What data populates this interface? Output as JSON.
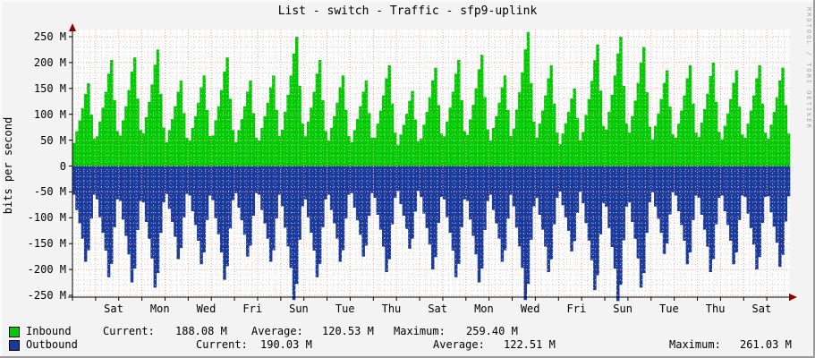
{
  "title": "List - switch - Traffic - sfp9-uplink",
  "watermark": "RRDTOOL / TOBI OETIKER",
  "y_axis": {
    "label": "bits per second",
    "tick_values_M": [
      250,
      200,
      150,
      100,
      50,
      0,
      -50,
      -100,
      -150,
      -200,
      -250
    ],
    "tick_labels": [
      "250 M",
      "200 M",
      "150 M",
      "100 M",
      "50 M",
      "0",
      "-50 M",
      "-100 M",
      "-150 M",
      "-200 M",
      "-250 M"
    ]
  },
  "x_axis": {
    "labels": [
      "Sat",
      "Mon",
      "Wed",
      "Fri",
      "Sun",
      "Tue",
      "Thu",
      "Sat",
      "Mon",
      "Wed",
      "Fri",
      "Sun",
      "Tue",
      "Thu",
      "Sat"
    ]
  },
  "legend": {
    "inbound": {
      "label": "Inbound",
      "current_label": "Current:",
      "current": "188.08 M",
      "average_label": "Average:",
      "average": "120.53 M",
      "maximum_label": "Maximum:",
      "maximum": "259.40 M"
    },
    "outbound": {
      "label": "Outbound",
      "current_label": "Current:",
      "current": "190.03 M",
      "average_label": "Average:",
      "average": "122.51 M",
      "maximum_label": "Maximum:",
      "maximum": "261.03 M"
    }
  },
  "colors": {
    "inbound": "#00CC00",
    "outbound": "#1A3A9E",
    "grid_major": "#F5A4A4",
    "grid_minor": "#CCCCCC",
    "axis": "#000000",
    "arrow": "#8B0000",
    "plot_bg": "#FFFFFF",
    "canvas_bg": "#F3F3F3",
    "watermark_text": "#A6A6A6"
  },
  "chart_data": {
    "type": "area",
    "title": "List - switch - Traffic - sfp9-uplink",
    "xlabel_ticks": [
      "Sat",
      "Mon",
      "Wed",
      "Fri",
      "Sun",
      "Tue",
      "Thu",
      "Sat",
      "Mon",
      "Wed",
      "Fri",
      "Sun",
      "Tue",
      "Thu",
      "Sat"
    ],
    "ylabel": "bits per second",
    "ylim_M": [
      -250,
      250
    ],
    "grid": true,
    "days": 31,
    "samples_per_day": 8,
    "series": [
      {
        "name": "Inbound",
        "unit": "M bits/s",
        "sign": 1,
        "day_peaks_M": [
          160,
          205,
          210,
          225,
          165,
          175,
          210,
          165,
          175,
          250,
          205,
          175,
          165,
          195,
          145,
          190,
          205,
          215,
          175,
          259,
          195,
          150,
          235,
          250,
          230,
          185,
          195,
          200,
          185,
          195,
          190
        ],
        "intraday_shape": [
          0.28,
          0.42,
          0.55,
          0.7,
          0.87,
          1.0,
          0.62,
          0.33
        ],
        "current_M": 188.08,
        "average_M": 120.53,
        "maximum_M": 259.4
      },
      {
        "name": "Outbound",
        "unit": "M bits/s",
        "sign": -1,
        "day_peaks_M": [
          185,
          215,
          225,
          235,
          180,
          190,
          220,
          175,
          185,
          259,
          215,
          185,
          175,
          205,
          160,
          200,
          215,
          225,
          185,
          259,
          205,
          165,
          240,
          261,
          235,
          170,
          190,
          205,
          190,
          200,
          195
        ],
        "intraday_shape": [
          0.3,
          0.46,
          0.6,
          0.76,
          1.0,
          0.88,
          0.55,
          0.3
        ],
        "current_M": 190.03,
        "average_M": 122.51,
        "maximum_M": 261.03
      }
    ],
    "legend_position": "bottom"
  }
}
